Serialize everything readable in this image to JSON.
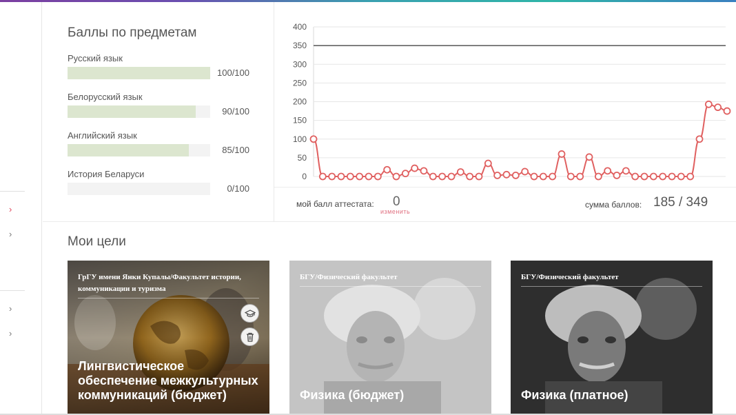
{
  "colors": {
    "accent": "#e0445a",
    "bar_fill": "#dce6cf",
    "bar_track": "#f3f3f3",
    "line": "#e06060",
    "ref_line": "#555555"
  },
  "nav": {
    "items": [
      {
        "icon": "chevron-right-icon",
        "active": true
      },
      {
        "icon": "chevron-right-icon",
        "active": false
      },
      {
        "icon": "chevron-right-icon",
        "active": false
      },
      {
        "icon": "chevron-right-icon",
        "active": false
      }
    ],
    "chevron_glyph": "›"
  },
  "scores": {
    "title": "Баллы по предметам",
    "subjects": [
      {
        "name": "Русский язык",
        "value": "100/100",
        "score": 100,
        "max": 100
      },
      {
        "name": "Белорусский язык",
        "value": "90/100",
        "score": 90,
        "max": 100
      },
      {
        "name": "Английский язык",
        "value": "85/100",
        "score": 85,
        "max": 100
      },
      {
        "name": "История Беларуси",
        "value": "0/100",
        "score": 0,
        "max": 100
      }
    ]
  },
  "chart_data": {
    "type": "line",
    "ylim": [
      0,
      400
    ],
    "yticks": [
      "0",
      "50",
      "100",
      "150",
      "200",
      "250",
      "300",
      "350",
      "400"
    ],
    "reference_line": 350,
    "grid": true,
    "values": [
      100,
      0,
      0,
      0,
      0,
      0,
      0,
      0,
      18,
      0,
      8,
      22,
      15,
      0,
      0,
      0,
      12,
      0,
      0,
      35,
      3,
      5,
      3,
      13,
      0,
      0,
      0,
      60,
      0,
      0,
      52,
      0,
      15,
      3,
      15,
      0,
      0,
      0,
      0,
      0,
      0,
      0,
      100,
      193,
      185,
      175
    ]
  },
  "footer": {
    "attestat_label": "мой балл аттестата:",
    "attestat_value": "0",
    "edit_label": "изменить",
    "sum_label": "сумма баллов:",
    "sum_value": "185 / 349"
  },
  "goals": {
    "title": "Мои цели",
    "cards": [
      {
        "institution": "ГрГУ имени Янки Купалы/Факультет истории, коммуникации и туризма",
        "program": "Лингвистическое обеспечение межкультурных коммуникаций (бюджет)",
        "graduate_icon": "graduation-cap-icon",
        "delete_icon": "trash-icon"
      },
      {
        "institution": "БГУ/Физический факультет",
        "program": "Физика (бюджет)"
      },
      {
        "institution": "БГУ/Физический факультет",
        "program": "Физика (платное)"
      }
    ]
  }
}
